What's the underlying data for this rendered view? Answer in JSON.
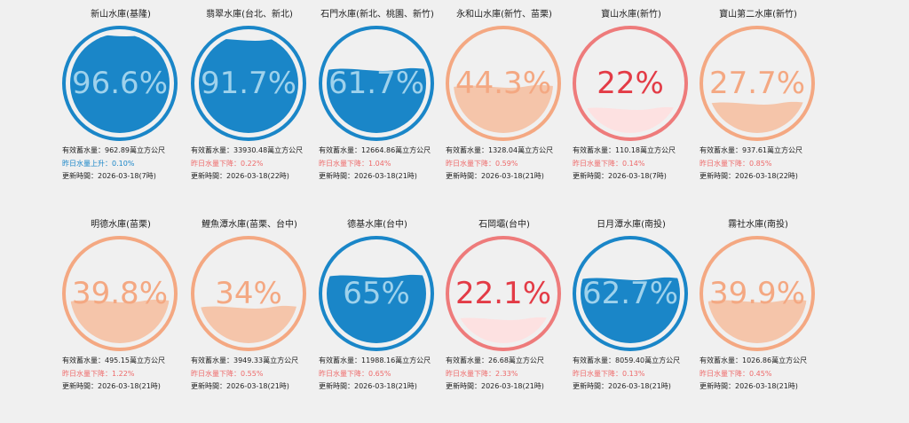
{
  "labels": {
    "storage": "有效蓄水量：",
    "unit": "萬立方公尺",
    "change": "昨日水量",
    "updated": "更新時間：",
    "up": "上升：",
    "down": "下降："
  },
  "colors": {
    "blue": "#1a86c8",
    "peach": "#f4a882",
    "red": "#ee7b7b",
    "rise_text": "#1a86c8",
    "fall_text": "#ee6a6a"
  },
  "reservoirs": [
    {
      "name": "新山水庫(基隆)",
      "percent_label": "96.6%",
      "level": 96.6,
      "theme": "blue",
      "storage": "962.89",
      "direction": "up",
      "change": "0.10%",
      "updated": "2026-03-18(7時)"
    },
    {
      "name": "翡翠水庫(台北、新北)",
      "percent_label": "91.7%",
      "level": 91.7,
      "theme": "blue",
      "storage": "33930.48",
      "direction": "down",
      "change": "0.22%",
      "updated": "2026-03-18(22時)"
    },
    {
      "name": "石門水庫(新北、桃園、新竹)",
      "percent_label": "61.7%",
      "level": 61.7,
      "theme": "blue",
      "storage": "12664.86",
      "direction": "down",
      "change": "1.04%",
      "updated": "2026-03-18(21時)"
    },
    {
      "name": "永和山水庫(新竹、苗栗)",
      "percent_label": "44.3%",
      "level": 44.3,
      "theme": "peach",
      "storage": "1328.04",
      "direction": "down",
      "change": "0.59%",
      "updated": "2026-03-18(21時)"
    },
    {
      "name": "寶山水庫(新竹)",
      "percent_label": "22%",
      "level": 22,
      "theme": "red",
      "storage": "110.18",
      "direction": "down",
      "change": "0.14%",
      "updated": "2026-03-18(7時)"
    },
    {
      "name": "寶山第二水庫(新竹)",
      "percent_label": "27.7%",
      "level": 27.7,
      "theme": "peach",
      "storage": "937.61",
      "direction": "down",
      "change": "0.85%",
      "updated": "2026-03-18(22時)"
    },
    {
      "name": "明德水庫(苗栗)",
      "percent_label": "39.8%",
      "level": 39.8,
      "theme": "peach",
      "storage": "495.15",
      "direction": "down",
      "change": "1.22%",
      "updated": "2026-03-18(21時)"
    },
    {
      "name": "鯉魚潭水庫(苗栗、台中)",
      "percent_label": "34%",
      "level": 34,
      "theme": "peach",
      "storage": "3949.33",
      "direction": "down",
      "change": "0.55%",
      "updated": "2026-03-18(21時)"
    },
    {
      "name": "德基水庫(台中)",
      "percent_label": "65%",
      "level": 65,
      "theme": "blue",
      "storage": "11988.16",
      "direction": "down",
      "change": "0.65%",
      "updated": "2026-03-18(21時)"
    },
    {
      "name": "石岡壩(台中)",
      "percent_label": "22.1%",
      "level": 22.1,
      "theme": "red",
      "storage": "26.68",
      "direction": "down",
      "change": "2.33%",
      "updated": "2026-03-18(21時)"
    },
    {
      "name": "日月潭水庫(南投)",
      "percent_label": "62.7%",
      "level": 62.7,
      "theme": "blue",
      "storage": "8059.40",
      "direction": "down",
      "change": "0.13%",
      "updated": "2026-03-18(21時)"
    },
    {
      "name": "霧社水庫(南投)",
      "percent_label": "39.9%",
      "level": 39.9,
      "theme": "peach",
      "storage": "1026.86",
      "direction": "down",
      "change": "0.45%",
      "updated": "2026-03-18(21時)"
    }
  ]
}
